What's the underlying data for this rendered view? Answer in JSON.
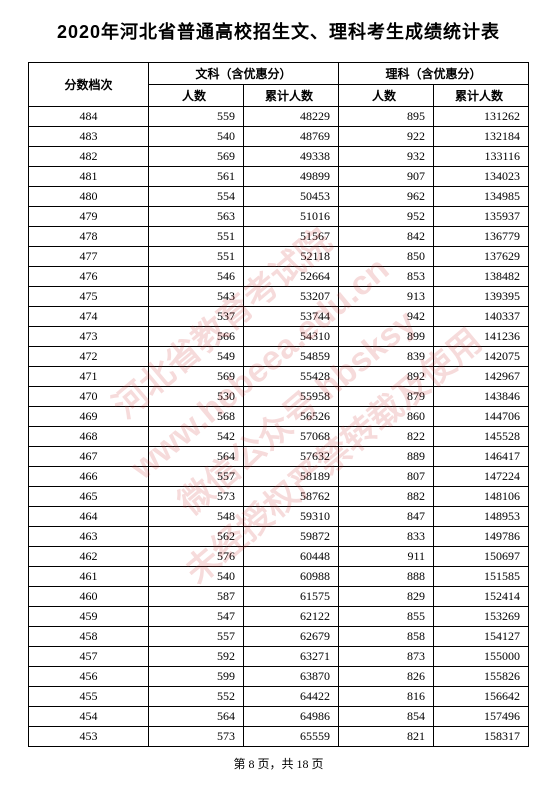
{
  "title": "2020年河北省普通高校招生文、理科考生成绩统计表",
  "header": {
    "col1": "分数档次",
    "grp1": "文科（含优惠分）",
    "grp2": "理科（含优惠分）",
    "sub1": "人数",
    "sub2": "累计人数"
  },
  "rows": [
    {
      "s": "484",
      "a": "559",
      "b": "48229",
      "c": "895",
      "d": "131262"
    },
    {
      "s": "483",
      "a": "540",
      "b": "48769",
      "c": "922",
      "d": "132184"
    },
    {
      "s": "482",
      "a": "569",
      "b": "49338",
      "c": "932",
      "d": "133116"
    },
    {
      "s": "481",
      "a": "561",
      "b": "49899",
      "c": "907",
      "d": "134023"
    },
    {
      "s": "480",
      "a": "554",
      "b": "50453",
      "c": "962",
      "d": "134985"
    },
    {
      "s": "479",
      "a": "563",
      "b": "51016",
      "c": "952",
      "d": "135937"
    },
    {
      "s": "478",
      "a": "551",
      "b": "51567",
      "c": "842",
      "d": "136779"
    },
    {
      "s": "477",
      "a": "551",
      "b": "52118",
      "c": "850",
      "d": "137629"
    },
    {
      "s": "476",
      "a": "546",
      "b": "52664",
      "c": "853",
      "d": "138482"
    },
    {
      "s": "475",
      "a": "543",
      "b": "53207",
      "c": "913",
      "d": "139395"
    },
    {
      "s": "474",
      "a": "537",
      "b": "53744",
      "c": "942",
      "d": "140337"
    },
    {
      "s": "473",
      "a": "566",
      "b": "54310",
      "c": "899",
      "d": "141236"
    },
    {
      "s": "472",
      "a": "549",
      "b": "54859",
      "c": "839",
      "d": "142075"
    },
    {
      "s": "471",
      "a": "569",
      "b": "55428",
      "c": "892",
      "d": "142967"
    },
    {
      "s": "470",
      "a": "530",
      "b": "55958",
      "c": "879",
      "d": "143846"
    },
    {
      "s": "469",
      "a": "568",
      "b": "56526",
      "c": "860",
      "d": "144706"
    },
    {
      "s": "468",
      "a": "542",
      "b": "57068",
      "c": "822",
      "d": "145528"
    },
    {
      "s": "467",
      "a": "564",
      "b": "57632",
      "c": "889",
      "d": "146417"
    },
    {
      "s": "466",
      "a": "557",
      "b": "58189",
      "c": "807",
      "d": "147224"
    },
    {
      "s": "465",
      "a": "573",
      "b": "58762",
      "c": "882",
      "d": "148106"
    },
    {
      "s": "464",
      "a": "548",
      "b": "59310",
      "c": "847",
      "d": "148953"
    },
    {
      "s": "463",
      "a": "562",
      "b": "59872",
      "c": "833",
      "d": "149786"
    },
    {
      "s": "462",
      "a": "576",
      "b": "60448",
      "c": "911",
      "d": "150697"
    },
    {
      "s": "461",
      "a": "540",
      "b": "60988",
      "c": "888",
      "d": "151585"
    },
    {
      "s": "460",
      "a": "587",
      "b": "61575",
      "c": "829",
      "d": "152414"
    },
    {
      "s": "459",
      "a": "547",
      "b": "62122",
      "c": "855",
      "d": "153269"
    },
    {
      "s": "458",
      "a": "557",
      "b": "62679",
      "c": "858",
      "d": "154127"
    },
    {
      "s": "457",
      "a": "592",
      "b": "63271",
      "c": "873",
      "d": "155000"
    },
    {
      "s": "456",
      "a": "599",
      "b": "63870",
      "c": "826",
      "d": "155826"
    },
    {
      "s": "455",
      "a": "552",
      "b": "64422",
      "c": "816",
      "d": "156642"
    },
    {
      "s": "454",
      "a": "564",
      "b": "64986",
      "c": "854",
      "d": "157496"
    },
    {
      "s": "453",
      "a": "573",
      "b": "65559",
      "c": "821",
      "d": "158317"
    }
  ],
  "watermark": {
    "line1": "河北省教育考试院",
    "line2": "www.hebeea.edu.cn",
    "line3": "微信公众号 hbsksy",
    "line4": "未经授权严禁转载及使用"
  },
  "pager": "第 8 页，共 18 页"
}
